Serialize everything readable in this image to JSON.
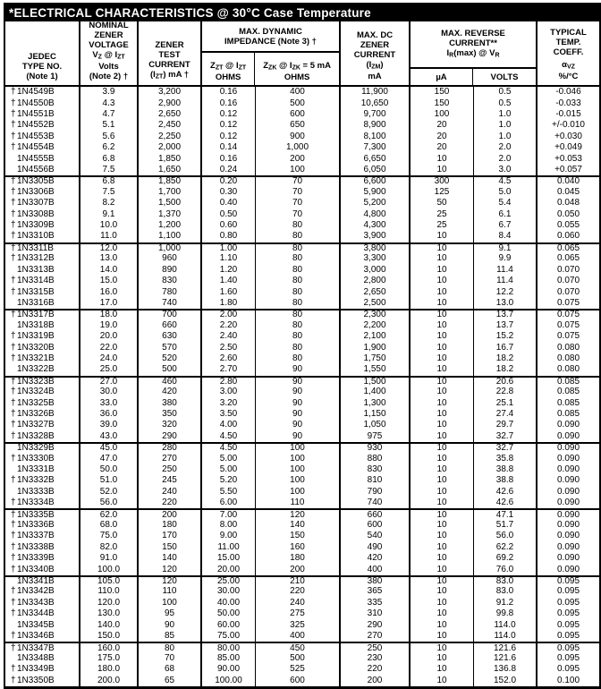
{
  "page": {
    "background": "#ffffff",
    "ink": "#000000",
    "title_bar_bg": "#000000",
    "title_bar_fg": "#ffffff"
  },
  "table": {
    "title": "*ELECTRICAL CHARACTERISTICS @ 30°C Case Temperature",
    "header": {
      "jedec": [
        "JEDEC",
        "TYPE NO.",
        "(Note 1)"
      ],
      "voltage": [
        "NOMINAL",
        "ZENER",
        "VOLTAGE",
        "V_{Z} @ I_{ZT}",
        "Volts",
        "(Note 2) †"
      ],
      "current": [
        "ZENER",
        "TEST",
        "CURRENT",
        "(I_{ZT}) mA †"
      ],
      "impedance": [
        "MAX. DYNAMIC",
        "IMPEDANCE (Note 3) †"
      ],
      "zzt": [
        "Z_{ZT} @ I_{ZT}",
        "OHMS"
      ],
      "zzk": [
        "Z_{ZK} @ I_{ZK} = 5 mA",
        "OHMS"
      ],
      "izm": [
        "MAX. DC",
        "ZENER",
        "CURRENT",
        "(I_{ZM})",
        "mA"
      ],
      "reverse": [
        "MAX. REVERSE",
        "CURRENT**",
        "I_{R}(max) @ V_{R}"
      ],
      "ua": [
        "µA"
      ],
      "volts": [
        "VOLTS"
      ],
      "coeff": [
        "TYPICAL",
        "TEMP.",
        "COEFF.",
        "",
        "α_{VZ}",
        "%/°C"
      ]
    },
    "column_keys": [
      "jedec-type-no",
      "zener-voltage-volts",
      "zener-test-current-ma",
      "zzt-ohms",
      "zzk-ohms",
      "izm-ma",
      "ir-max-ua",
      "vr-volts",
      "temp-coeff"
    ],
    "groups": [
      [
        [
          "†",
          "1N4549B",
          "3.9",
          "3,200",
          "0.16",
          "400",
          "11,900",
          "150",
          "0.5",
          "-0.046"
        ],
        [
          "†",
          "1N4550B",
          "4.3",
          "2,900",
          "0.16",
          "500",
          "10,650",
          "150",
          "0.5",
          "-0.033"
        ],
        [
          "†",
          "1N4551B",
          "4.7",
          "2,650",
          "0.12",
          "600",
          "9,700",
          "100",
          "1.0",
          "-0.015"
        ],
        [
          "†",
          "1N4552B",
          "5.1",
          "2,450",
          "0.12",
          "650",
          "8,900",
          "20",
          "1.0",
          "+/-0.010"
        ],
        [
          "†",
          "1N4553B",
          "5.6",
          "2,250",
          "0.12",
          "900",
          "8,100",
          "20",
          "1.0",
          "+0.030"
        ],
        [
          "†",
          "1N4554B",
          "6.2",
          "2,000",
          "0.14",
          "1,000",
          "7,300",
          "20",
          "2.0",
          "+0.049"
        ],
        [
          "",
          "1N4555B",
          "6.8",
          "1,850",
          "0.16",
          "200",
          "6,650",
          "10",
          "2.0",
          "+0.053"
        ],
        [
          "",
          "1N4556B",
          "7.5",
          "1,650",
          "0.24",
          "100",
          "6,050",
          "10",
          "3.0",
          "+0.057"
        ]
      ],
      [
        [
          "†",
          "1N3305B",
          "6.8",
          "1,850",
          "0.20",
          "70",
          "6,600",
          "300",
          "4.5",
          "0.040"
        ],
        [
          "†",
          "1N3306B",
          "7.5",
          "1,700",
          "0.30",
          "70",
          "5,900",
          "125",
          "5.0",
          "0.045"
        ],
        [
          "†",
          "1N3307B",
          "8.2",
          "1,500",
          "0.40",
          "70",
          "5,200",
          "50",
          "5.4",
          "0.048"
        ],
        [
          "†",
          "1N3308B",
          "9.1",
          "1,370",
          "0.50",
          "70",
          "4,800",
          "25",
          "6.1",
          "0.050"
        ],
        [
          "†",
          "1N3309B",
          "10.0",
          "1,200",
          "0.60",
          "80",
          "4,300",
          "25",
          "6.7",
          "0.055"
        ],
        [
          "†",
          "1N3310B",
          "11.0",
          "1,100",
          "0.80",
          "80",
          "3,900",
          "10",
          "8.4",
          "0.060"
        ]
      ],
      [
        [
          "†",
          "1N3311B",
          "12.0",
          "1,000",
          "1.00",
          "80",
          "3,800",
          "10",
          "9.1",
          "0.065"
        ],
        [
          "†",
          "1N3312B",
          "13.0",
          "960",
          "1.10",
          "80",
          "3,300",
          "10",
          "9.9",
          "0.065"
        ],
        [
          "",
          "1N3313B",
          "14.0",
          "890",
          "1.20",
          "80",
          "3,000",
          "10",
          "11.4",
          "0.070"
        ],
        [
          "†",
          "1N3314B",
          "15.0",
          "830",
          "1.40",
          "80",
          "2,800",
          "10",
          "11.4",
          "0.070"
        ],
        [
          "†",
          "1N3315B",
          "16.0",
          "780",
          "1.60",
          "80",
          "2,650",
          "10",
          "12.2",
          "0.070"
        ],
        [
          "",
          "1N3316B",
          "17.0",
          "740",
          "1.80",
          "80",
          "2,500",
          "10",
          "13.0",
          "0.075"
        ]
      ],
      [
        [
          "†",
          "1N3317B",
          "18.0",
          "700",
          "2.00",
          "80",
          "2,300",
          "10",
          "13.7",
          "0.075"
        ],
        [
          "",
          "1N3318B",
          "19.0",
          "660",
          "2.20",
          "80",
          "2,200",
          "10",
          "13.7",
          "0.075"
        ],
        [
          "†",
          "1N3319B",
          "20.0",
          "630",
          "2.40",
          "80",
          "2,100",
          "10",
          "15.2",
          "0.075"
        ],
        [
          "†",
          "1N3320B",
          "22.0",
          "570",
          "2.50",
          "80",
          "1,900",
          "10",
          "16.7",
          "0.080"
        ],
        [
          "†",
          "1N3321B",
          "24.0",
          "520",
          "2.60",
          "80",
          "1,750",
          "10",
          "18.2",
          "0.080"
        ],
        [
          "",
          "1N3322B",
          "25.0",
          "500",
          "2.70",
          "90",
          "1,550",
          "10",
          "18.2",
          "0.080"
        ]
      ],
      [
        [
          "†",
          "1N3323B",
          "27.0",
          "460",
          "2.80",
          "90",
          "1,500",
          "10",
          "20.6",
          "0.085"
        ],
        [
          "†",
          "1N3324B",
          "30.0",
          "420",
          "3.00",
          "90",
          "1,400",
          "10",
          "22.8",
          "0.085"
        ],
        [
          "†",
          "1N3325B",
          "33.0",
          "380",
          "3.20",
          "90",
          "1,300",
          "10",
          "25.1",
          "0.085"
        ],
        [
          "†",
          "1N3326B",
          "36.0",
          "350",
          "3.50",
          "90",
          "1,150",
          "10",
          "27.4",
          "0.085"
        ],
        [
          "†",
          "1N3327B",
          "39.0",
          "320",
          "4.00",
          "90",
          "1,050",
          "10",
          "29.7",
          "0.090"
        ],
        [
          "†",
          "1N3328B",
          "43.0",
          "290",
          "4.50",
          "90",
          "975",
          "10",
          "32.7",
          "0.090"
        ]
      ],
      [
        [
          "",
          "1N3329B",
          "45.0",
          "280",
          "4.50",
          "100",
          "930",
          "10",
          "32.7",
          "0.090"
        ],
        [
          "†",
          "1N3330B",
          "47.0",
          "270",
          "5.00",
          "100",
          "880",
          "10",
          "35.8",
          "0.090"
        ],
        [
          "",
          "1N3331B",
          "50.0",
          "250",
          "5.00",
          "100",
          "830",
          "10",
          "38.8",
          "0.090"
        ],
        [
          "†",
          "1N3332B",
          "51.0",
          "245",
          "5.20",
          "100",
          "810",
          "10",
          "38.8",
          "0.090"
        ],
        [
          "",
          "1N3333B",
          "52.0",
          "240",
          "5.50",
          "100",
          "790",
          "10",
          "42.6",
          "0.090"
        ],
        [
          "†",
          "1N3334B",
          "56.0",
          "220",
          "6.00",
          "110",
          "740",
          "10",
          "42.6",
          "0.090"
        ]
      ],
      [
        [
          "†",
          "1N3335B",
          "62.0",
          "200",
          "7.00",
          "120",
          "660",
          "10",
          "47.1",
          "0.090"
        ],
        [
          "†",
          "1N3336B",
          "68.0",
          "180",
          "8.00",
          "140",
          "600",
          "10",
          "51.7",
          "0.090"
        ],
        [
          "†",
          "1N3337B",
          "75.0",
          "170",
          "9.00",
          "150",
          "540",
          "10",
          "56.0",
          "0.090"
        ],
        [
          "†",
          "1N3338B",
          "82.0",
          "150",
          "11.00",
          "160",
          "490",
          "10",
          "62.2",
          "0.090"
        ],
        [
          "†",
          "1N3339B",
          "91.0",
          "140",
          "15.00",
          "180",
          "420",
          "10",
          "69.2",
          "0.090"
        ],
        [
          "†",
          "1N3340B",
          "100.0",
          "120",
          "20.00",
          "200",
          "400",
          "10",
          "76.0",
          "0.090"
        ]
      ],
      [
        [
          "",
          "1N3341B",
          "105.0",
          "120",
          "25.00",
          "210",
          "380",
          "10",
          "83.0",
          "0.095"
        ],
        [
          "†",
          "1N3342B",
          "110.0",
          "110",
          "30.00",
          "220",
          "365",
          "10",
          "83.0",
          "0.095"
        ],
        [
          "†",
          "1N3343B",
          "120.0",
          "100",
          "40.00",
          "240",
          "335",
          "10",
          "91.2",
          "0.095"
        ],
        [
          "†",
          "1N3344B",
          "130.0",
          "95",
          "50.00",
          "275",
          "310",
          "10",
          "99.8",
          "0.095"
        ],
        [
          "",
          "1N3345B",
          "140.0",
          "90",
          "60.00",
          "325",
          "290",
          "10",
          "114.0",
          "0.095"
        ],
        [
          "†",
          "1N3346B",
          "150.0",
          "85",
          "75.00",
          "400",
          "270",
          "10",
          "114.0",
          "0.095"
        ]
      ],
      [
        [
          "†",
          "1N3347B",
          "160.0",
          "80",
          "80.00",
          "450",
          "250",
          "10",
          "121.6",
          "0.095"
        ],
        [
          "",
          "1N3348B",
          "175.0",
          "70",
          "85.00",
          "500",
          "230",
          "10",
          "121.6",
          "0.095"
        ],
        [
          "†",
          "1N3349B",
          "180.0",
          "68",
          "90.00",
          "525",
          "220",
          "10",
          "136.8",
          "0.095"
        ],
        [
          "†",
          "1N3350B",
          "200.0",
          "65",
          "100.00",
          "600",
          "200",
          "10",
          "152.0",
          "0.100"
        ]
      ]
    ]
  }
}
